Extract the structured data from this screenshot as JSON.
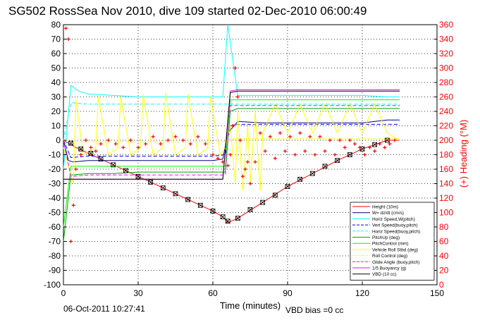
{
  "figure": {
    "title": "SG502 RossSea Nov 2010, dive 109 started 02-Dec-2010 06:00:49",
    "footer_date": "06-Oct-2011 10:27:41",
    "footer_note": "VBD bias =0 cc"
  },
  "chart_data": {
    "type": "line",
    "title": "SG502 RossSea Nov 2010, dive 109 started 02-Dec-2010 06:00:49",
    "xlabel": "Time (minutes)",
    "ylabel": "",
    "y2label": "(+) Heading (°M)",
    "xlim": [
      0,
      150
    ],
    "ylim": [
      -100,
      80
    ],
    "y2lim": [
      0,
      360
    ],
    "xticks": [
      0,
      30,
      60,
      90,
      120,
      150
    ],
    "yticks": [
      -100,
      -90,
      -80,
      -70,
      -60,
      -50,
      -40,
      -30,
      -20,
      -10,
      0,
      10,
      20,
      30,
      40,
      50,
      60,
      70,
      80
    ],
    "y2ticks": [
      0,
      20,
      40,
      60,
      80,
      100,
      120,
      140,
      160,
      180,
      200,
      220,
      240,
      260,
      280,
      300,
      320,
      340,
      360
    ],
    "grid": true,
    "legend_position": "bottom-right",
    "colors": {
      "heading": "#ff0000",
      "depth": "#000000",
      "w": "#000080",
      "hspd": "#00ffff",
      "vspd": "#0000ff",
      "hspd_buoy": "#00ffff",
      "pitchup": "#00a000",
      "pitchctl": "#00ff00",
      "roll": "#ffff00",
      "rollctl": "#ffff00",
      "glide": "#ff00ff",
      "buoyancy": "#ff00ff",
      "vbd": "#000000"
    },
    "series": [
      {
        "name": "Height (10m)",
        "style": "solid",
        "color": "#ff0000",
        "x": [
          0,
          2,
          5,
          10,
          20,
          30,
          40,
          50,
          60,
          64,
          66,
          70,
          80,
          90,
          100,
          110,
          120,
          130,
          135
        ],
        "y": [
          0,
          -2,
          -5,
          -9,
          -17,
          -25,
          -33,
          -41,
          -49,
          -53,
          -57,
          -54,
          -43,
          -32,
          -23,
          -14,
          -6,
          0,
          0
        ]
      },
      {
        "name": "W= dz/dt (cm/s)",
        "style": "solid",
        "color": "#000080",
        "x": [
          0,
          2,
          4,
          10,
          20,
          30,
          40,
          50,
          60,
          64,
          66,
          70,
          80,
          90,
          100,
          110,
          120,
          130,
          135
        ],
        "y": [
          0,
          -14,
          -15,
          -14,
          -14,
          -14,
          -14,
          -14,
          -14,
          -13,
          5,
          13,
          12,
          12,
          12,
          12,
          12,
          14,
          14
        ]
      },
      {
        "name": "Horiz Speed,W(pitch)",
        "style": "solid",
        "color": "#00ffff",
        "x": [
          0,
          3,
          6,
          10,
          20,
          30,
          40,
          50,
          60,
          64,
          66,
          70,
          80,
          90,
          100,
          110,
          120,
          130,
          135
        ],
        "y": [
          -20,
          38,
          34,
          32,
          31,
          30,
          30,
          30,
          30,
          30,
          80,
          31,
          31,
          31,
          31,
          31,
          31,
          30,
          30
        ]
      },
      {
        "name": "Vert Speed(buoy,pitch)",
        "style": "dashed",
        "color": "#0000ff",
        "x": [
          0,
          3,
          10,
          20,
          30,
          40,
          50,
          60,
          65,
          67,
          70,
          80,
          90,
          100,
          110,
          120,
          130,
          135
        ],
        "y": [
          0,
          -12,
          -11,
          -11,
          -11,
          -11,
          -11,
          -11,
          -10,
          10,
          11,
          11,
          11,
          11,
          11,
          11,
          11,
          11
        ]
      },
      {
        "name": "Horiz Speed(buoy,pitch)",
        "style": "dashed",
        "color": "#00ffff",
        "x": [
          0,
          3,
          10,
          20,
          30,
          40,
          50,
          60,
          65,
          67,
          70,
          80,
          90,
          100,
          110,
          120,
          130,
          135
        ],
        "y": [
          0,
          26,
          25,
          25,
          25,
          25,
          25,
          25,
          25,
          25,
          25,
          25,
          25,
          25,
          25,
          25,
          25,
          25
        ]
      },
      {
        "name": "PitchUp (deg)",
        "style": "solid",
        "color": "#00a000",
        "x": [
          0,
          3,
          10,
          20,
          30,
          40,
          50,
          60,
          65,
          67,
          70,
          80,
          90,
          100,
          110,
          120,
          130,
          135
        ],
        "y": [
          -70,
          -24,
          -23,
          -23,
          -22,
          -22,
          -22,
          -22,
          -22,
          20,
          22,
          22,
          22,
          22,
          22,
          22,
          22,
          22
        ]
      },
      {
        "name": "PitchControl (mm)",
        "style": "solid",
        "color": "#00ff00",
        "x": [
          0,
          3,
          10,
          20,
          30,
          40,
          50,
          60,
          65,
          67,
          70,
          80,
          90,
          100,
          110,
          120,
          130,
          135
        ],
        "y": [
          -60,
          -18,
          -18,
          -18,
          -18,
          -18,
          -18,
          -18,
          -18,
          28,
          28,
          28,
          28,
          28,
          28,
          28,
          28,
          28
        ]
      },
      {
        "name": "Vehicle Roll Stbd (deg)",
        "style": "solid",
        "color": "#ffff00",
        "x": [
          0,
          4,
          5,
          8,
          13,
          14,
          18,
          22,
          23,
          27,
          31,
          32,
          36,
          40,
          41,
          45,
          49,
          50,
          54,
          58,
          59,
          63,
          65,
          67,
          69,
          70,
          72,
          74,
          75,
          77,
          79,
          80,
          85,
          90,
          95,
          100,
          105,
          110,
          115,
          120,
          125,
          130,
          135
        ],
        "y": [
          -5,
          -30,
          28,
          -10,
          -5,
          30,
          -10,
          -5,
          30,
          -10,
          -5,
          32,
          -10,
          -5,
          33,
          -10,
          -5,
          32,
          -10,
          -5,
          30,
          -10,
          -5,
          10,
          -30,
          20,
          -35,
          10,
          -30,
          20,
          -35,
          5,
          25,
          5,
          25,
          5,
          25,
          5,
          25,
          5,
          25,
          5,
          0
        ]
      },
      {
        "name": "Roll Control (deg)",
        "style": "dashed",
        "color": "#ffff00",
        "x": [
          0,
          3,
          10,
          20,
          30,
          40,
          50,
          60,
          65,
          67,
          70,
          80,
          90,
          100,
          110,
          120,
          130,
          135
        ],
        "y": [
          0,
          -1,
          -1,
          -1,
          -1,
          -1,
          -1,
          -1,
          -1,
          1,
          1,
          1,
          1,
          1,
          1,
          1,
          1,
          1
        ]
      },
      {
        "name": "Glide Angle (buoy,pitch)",
        "style": "dashed",
        "color": "#ff00ff",
        "x": [
          0,
          3,
          10,
          20,
          30,
          40,
          50,
          60,
          65,
          67,
          70,
          80,
          90,
          100,
          110,
          120,
          130,
          135
        ],
        "y": [
          0,
          -25,
          -24,
          -24,
          -24,
          -24,
          -24,
          -24,
          -24,
          24,
          24,
          24,
          24,
          24,
          24,
          24,
          24,
          24
        ]
      },
      {
        "name": "1/5 Buoyancy (g)",
        "style": "solid",
        "color": "#ff00ff",
        "x": [
          0,
          3,
          10,
          20,
          30,
          40,
          50,
          60,
          64,
          67,
          70,
          80,
          90,
          100,
          110,
          120,
          130,
          135
        ],
        "y": [
          -27,
          -27,
          -27,
          -27,
          -27,
          -27,
          -27,
          -27,
          -27,
          34,
          35,
          35,
          35,
          35,
          35,
          35,
          35,
          35
        ]
      },
      {
        "name": "VBD (10 cc)",
        "style": "solid",
        "color": "#000000",
        "x": [
          0,
          3,
          10,
          20,
          30,
          40,
          50,
          60,
          64,
          67,
          70,
          80,
          90,
          100,
          110,
          120,
          130,
          135
        ],
        "y": [
          -27,
          -27,
          -27,
          -27,
          -27,
          -27,
          -27,
          -27,
          -27,
          33,
          34,
          34,
          34,
          34,
          34,
          34,
          34,
          34
        ]
      }
    ],
    "heading_points": {
      "name": "(+) Heading (°M)",
      "marker": "+",
      "color": "#ff0000",
      "axis": "right",
      "x": [
        1,
        2,
        3,
        4,
        5,
        7,
        9,
        11,
        13,
        15,
        18,
        21,
        24,
        27,
        30,
        33,
        36,
        39,
        42,
        45,
        48,
        51,
        54,
        57,
        60,
        62,
        64,
        66,
        67,
        68,
        69,
        70,
        71,
        72,
        73,
        74,
        75,
        77,
        79,
        81,
        83,
        85,
        87,
        89,
        91,
        93,
        95,
        97,
        99,
        101,
        103,
        105,
        107,
        109,
        111,
        113,
        115,
        117,
        119,
        121,
        123,
        125,
        127,
        129,
        131,
        133
      ],
      "y": [
        355,
        340,
        60,
        110,
        160,
        180,
        200,
        190,
        185,
        195,
        200,
        195,
        190,
        200,
        190,
        195,
        205,
        195,
        200,
        205,
        200,
        195,
        205,
        195,
        180,
        175,
        170,
        165,
        180,
        220,
        300,
        260,
        200,
        150,
        160,
        170,
        140,
        170,
        210,
        185,
        205,
        175,
        210,
        185,
        205,
        180,
        210,
        185,
        205,
        180,
        205,
        185,
        200,
        180,
        200,
        190,
        200,
        195,
        190,
        180,
        190,
        185,
        195,
        190,
        195,
        200
      ]
    },
    "depth_markers": {
      "marker": "x-box",
      "color": "#000000",
      "x": [
        3,
        7,
        11,
        15,
        20,
        25,
        30,
        35,
        40,
        45,
        50,
        55,
        60,
        64,
        66,
        70,
        75,
        80,
        85,
        90,
        95,
        100,
        105,
        110,
        115,
        120,
        125,
        130
      ],
      "y": [
        -2,
        -6,
        -9,
        -13,
        -17,
        -21,
        -25,
        -29,
        -33,
        -37,
        -41,
        -45,
        -49,
        -53,
        -56,
        -54,
        -48,
        -43,
        -38,
        -32,
        -27,
        -23,
        -18,
        -14,
        -10,
        -6,
        -3,
        0
      ]
    }
  }
}
